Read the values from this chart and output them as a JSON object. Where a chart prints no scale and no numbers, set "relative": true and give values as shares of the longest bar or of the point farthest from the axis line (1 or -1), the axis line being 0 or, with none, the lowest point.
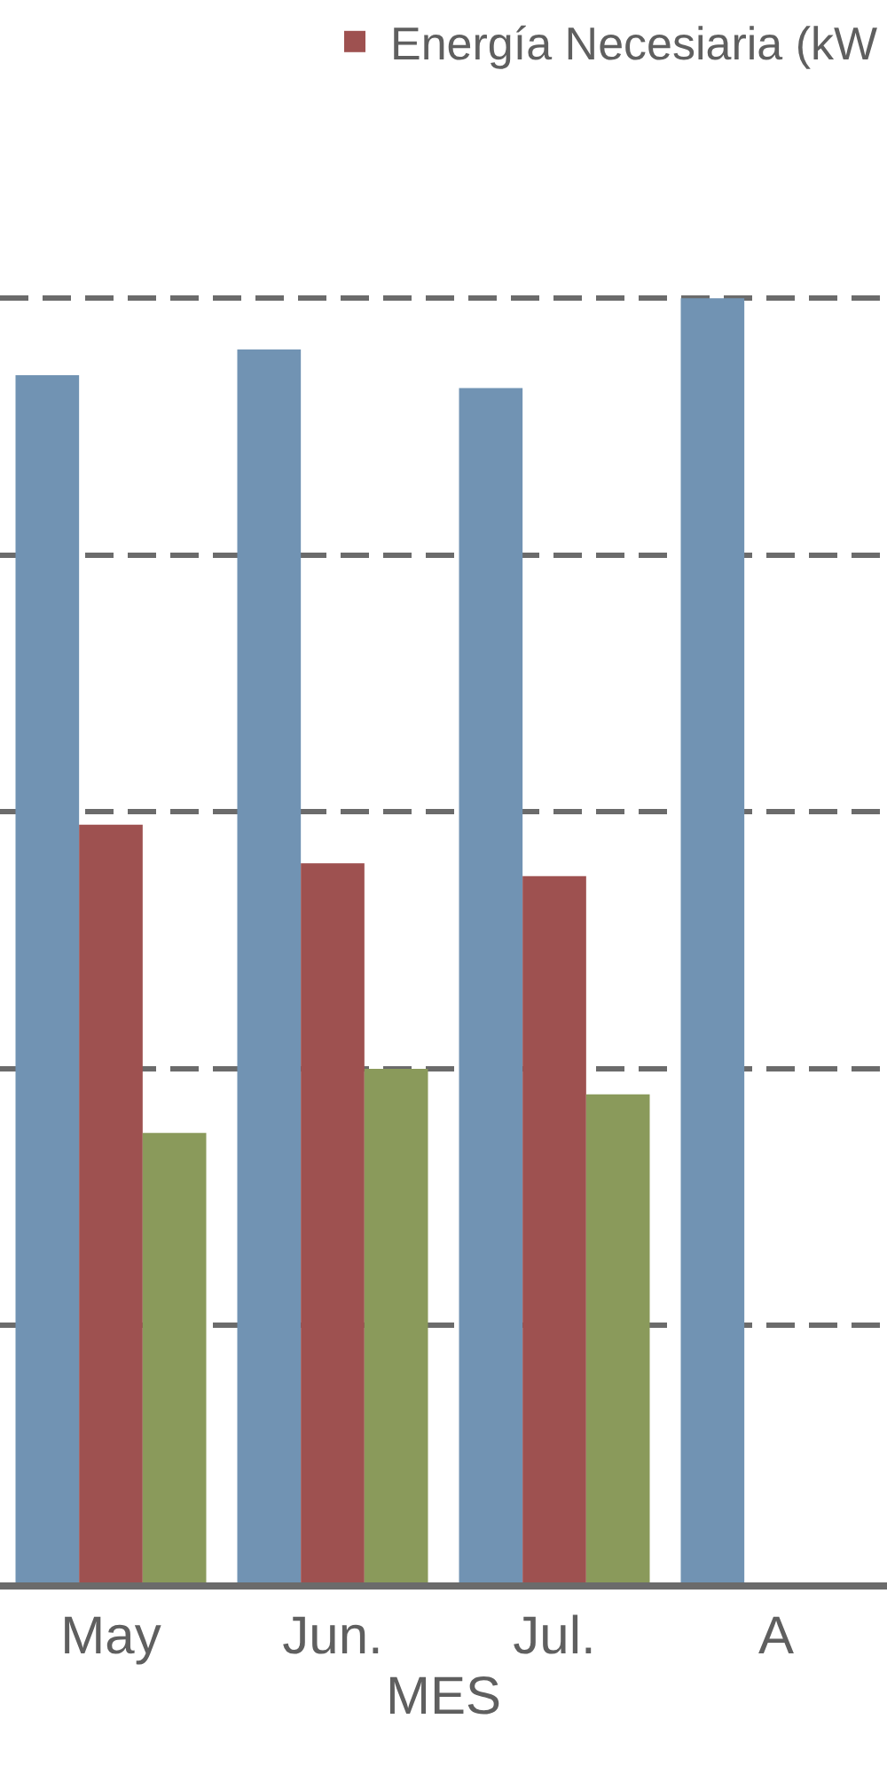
{
  "chart_data": {
    "type": "bar",
    "relative": true,
    "categories": [
      "May",
      "Jun.",
      "Jul.",
      "A"
    ],
    "xlabel": "MES",
    "series": [
      {
        "color": "#7193b3",
        "values": [
          0.94,
          0.96,
          0.93,
          1
        ]
      },
      {
        "name": "Energía Necesiaria (kW",
        "color": "#9e5150",
        "values": [
          0.59,
          0.56,
          0.55,
          null
        ]
      },
      {
        "color": "#8a9a5b",
        "values": [
          0.35,
          0.4,
          0.38,
          null
        ]
      }
    ],
    "grid": "y",
    "legend": "top right"
  }
}
